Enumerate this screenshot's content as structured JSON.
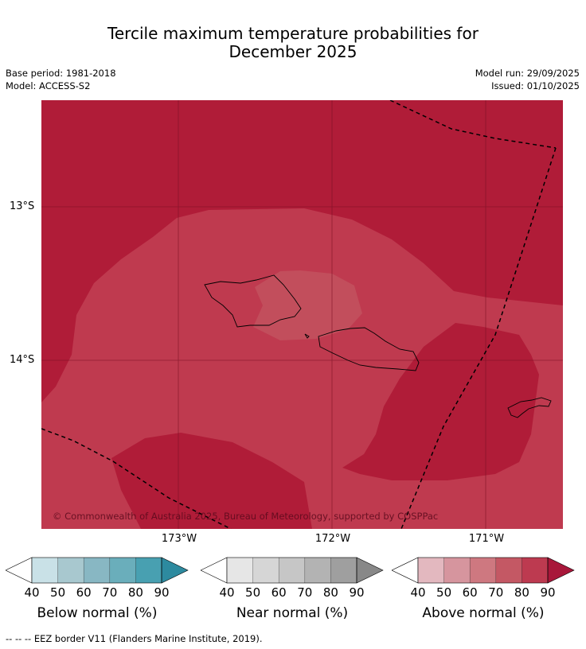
{
  "title": {
    "line1": "Tercile maximum temperature probabilities for",
    "line2": "December 2025"
  },
  "meta": {
    "base_period": "Base period: 1981-2018",
    "model": "Model: ACCESS-S2",
    "model_run": "Model run: 29/09/2025",
    "issued": "Issued: 01/10/2025"
  },
  "map": {
    "longitude_labels": [
      "173°W",
      "172°W",
      "171°W"
    ],
    "latitude_labels": [
      "13°S",
      "14°S"
    ],
    "copyright": "© Commonwealth of Australia 2025, Bureau of Meteorology, supported by COSPPac",
    "zone_colors": {
      "above_90": "#b01c38",
      "above_80": "#bf3a4f",
      "above_70": "#c24e5c"
    },
    "eez_line_color": "#000000",
    "coastline_icon": "island-outline-icon"
  },
  "colorbars": [
    {
      "title": "Below normal (%)",
      "ticks": [
        "40",
        "50",
        "60",
        "70",
        "80",
        "90"
      ],
      "colors": [
        "#ffffff",
        "#c9e1e7",
        "#a8c8cf",
        "#88b7c3",
        "#6aaebb",
        "#48a0b1",
        "#2d8a9f"
      ]
    },
    {
      "title": "Near normal (%)",
      "ticks": [
        "40",
        "50",
        "60",
        "70",
        "80",
        "90"
      ],
      "colors": [
        "#ffffff",
        "#e6e6e6",
        "#d6d6d6",
        "#c6c6c6",
        "#b3b3b3",
        "#9f9f9f",
        "#888888"
      ]
    },
    {
      "title": "Above normal (%)",
      "ticks": [
        "40",
        "50",
        "60",
        "70",
        "80",
        "90"
      ],
      "colors": [
        "#ffffff",
        "#e3b8bf",
        "#d6959e",
        "#ce7880",
        "#c45864",
        "#bd3a50",
        "#a8173a"
      ]
    }
  ],
  "footnote": "--  --  -- EEZ border V11 (Flanders Marine Institute, 2019)."
}
